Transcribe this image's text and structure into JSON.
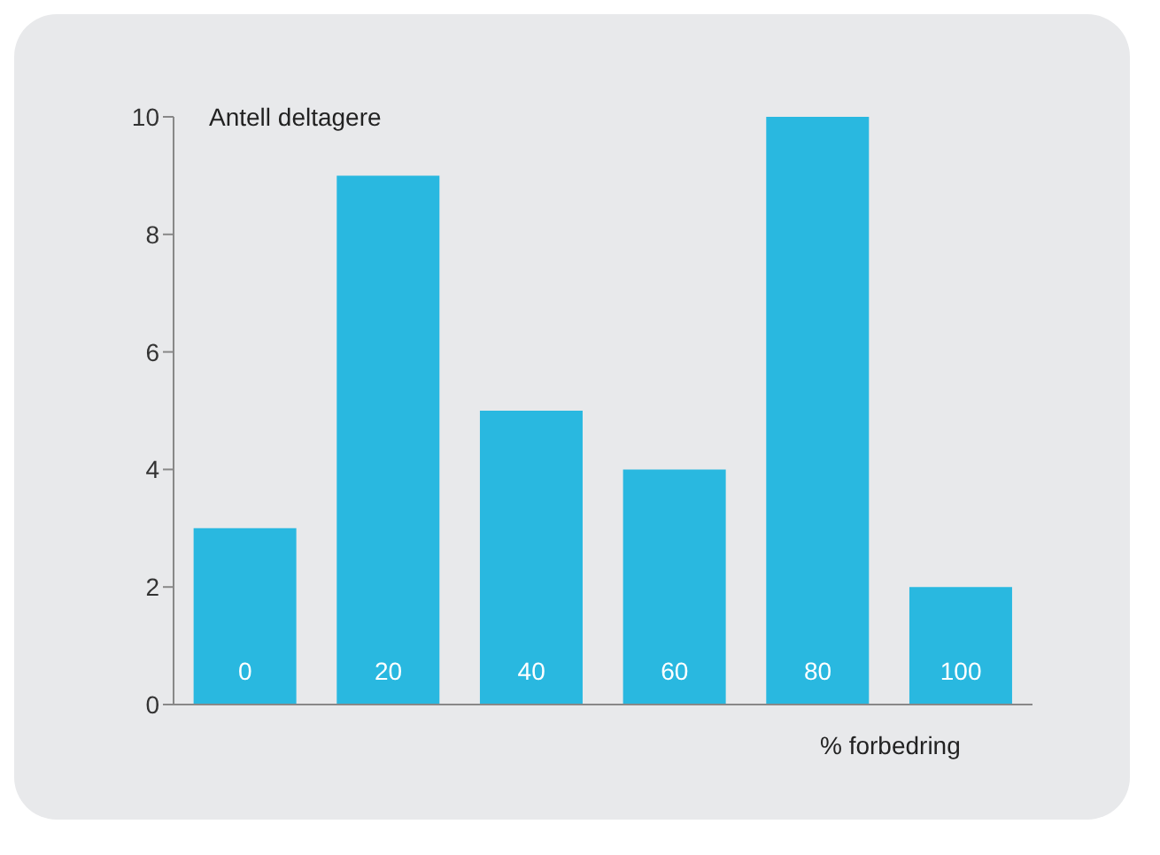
{
  "chart_data": {
    "type": "bar",
    "ylabel": "Antell deltagere",
    "xlabel": "% forbedring",
    "categories": [
      "0",
      "20",
      "40",
      "60",
      "80",
      "100"
    ],
    "values": [
      3,
      9,
      5,
      4,
      10,
      2
    ],
    "color": "#29b8e0",
    "ylim": [
      0,
      10
    ],
    "yticks": [
      0,
      2,
      4,
      6,
      8,
      10
    ],
    "grid": false,
    "legend": false
  }
}
